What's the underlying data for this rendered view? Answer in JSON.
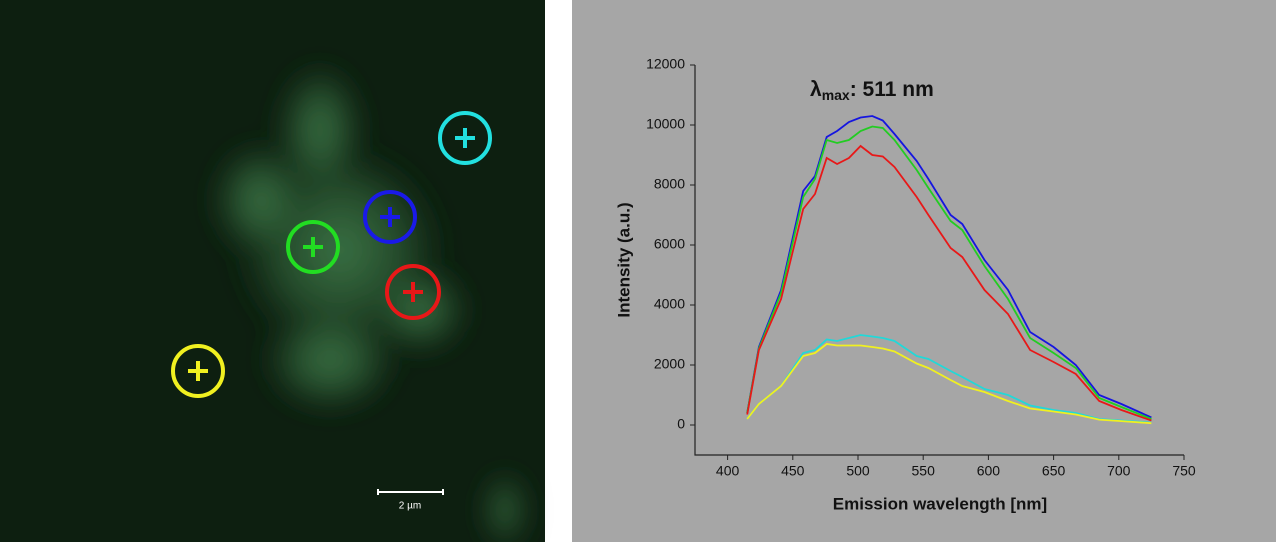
{
  "image": {
    "scale_bar": "2 µm"
  },
  "chart_data": {
    "type": "line",
    "annotation": {
      "symbol": "λ",
      "subscript": "max",
      "text": ": 511 nm"
    },
    "x_label": "Emission wavelength [nm]",
    "y_label": "Intensity (a.u.)",
    "x": [
      415,
      424,
      441,
      458,
      467,
      476,
      484,
      493,
      502,
      511,
      519,
      528,
      545,
      554,
      571,
      580,
      597,
      615,
      632,
      650,
      667,
      685,
      702,
      725
    ],
    "series": [
      {
        "color": "#1515e0",
        "values": [
          400,
          2600,
          4500,
          7800,
          8300,
          9600,
          9800,
          10100,
          10250,
          10300,
          10150,
          9700,
          8800,
          8200,
          7000,
          6700,
          5500,
          4500,
          3100,
          2600,
          2000,
          1000,
          700,
          250
        ]
      },
      {
        "color": "#22cc22",
        "values": [
          400,
          2550,
          4400,
          7600,
          8200,
          9500,
          9400,
          9500,
          9800,
          9950,
          9900,
          9500,
          8500,
          7900,
          6800,
          6500,
          5300,
          4200,
          2900,
          2400,
          1900,
          900,
          600,
          200
        ]
      },
      {
        "color": "#e81818",
        "values": [
          350,
          2500,
          4200,
          7200,
          7700,
          8900,
          8700,
          8900,
          9300,
          9000,
          8950,
          8600,
          7600,
          7000,
          5900,
          5600,
          4500,
          3700,
          2500,
          2100,
          1700,
          800,
          500,
          150
        ]
      },
      {
        "color": "#22d8d8",
        "values": [
          200,
          700,
          1300,
          2400,
          2500,
          2850,
          2800,
          2900,
          3000,
          2950,
          2900,
          2800,
          2300,
          2200,
          1800,
          1600,
          1200,
          1000,
          650,
          500,
          400,
          200,
          150,
          80
        ]
      },
      {
        "color": "#f0f020",
        "values": [
          200,
          700,
          1300,
          2300,
          2400,
          2700,
          2650,
          2650,
          2650,
          2600,
          2550,
          2450,
          2050,
          1900,
          1500,
          1300,
          1100,
          800,
          550,
          450,
          350,
          180,
          130,
          60
        ]
      }
    ],
    "xlim": [
      375,
      750
    ],
    "xticks": [
      400,
      450,
      500,
      550,
      600,
      650,
      700,
      750
    ],
    "ylim": [
      -1000,
      12000
    ],
    "yticks": [
      0,
      2000,
      4000,
      6000,
      8000,
      10000,
      12000
    ]
  }
}
